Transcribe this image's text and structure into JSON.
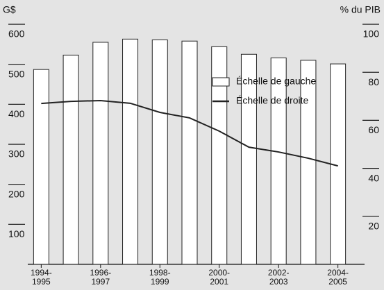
{
  "chart_data": {
    "type": "bar",
    "y_label": "G$",
    "y2_label": "% du PIB",
    "categories": [
      "1994-1995",
      null,
      "1996-1997",
      null,
      "1998-1999",
      null,
      "2000-2001",
      null,
      "2002-2003",
      null,
      "2004-2005"
    ],
    "series": [
      {
        "name": "Échelle de gauche",
        "type": "bar",
        "color": "#ffffff",
        "values": [
          487,
          523,
          555,
          563,
          561,
          558,
          544,
          525,
          516,
          510,
          501
        ]
      },
      {
        "name": "Échelle de droite",
        "type": "line",
        "axis": "y2",
        "color": "#222222",
        "values": [
          67.0,
          67.9,
          68.2,
          67.1,
          63.3,
          61.0,
          55.5,
          48.8,
          46.8,
          44.2,
          41.0
        ]
      }
    ],
    "ylim": [
      0,
      600
    ],
    "yticks": [
      100,
      200,
      300,
      400,
      500,
      600
    ],
    "y2lim": [
      0,
      100
    ],
    "y2ticks": [
      20,
      40,
      60,
      80,
      100
    ],
    "legend": "upper right"
  }
}
